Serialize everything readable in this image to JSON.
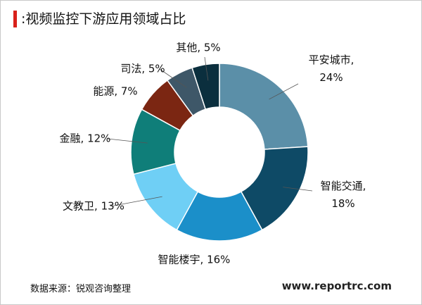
{
  "chart_data": {
    "type": "donut",
    "title": ":视频监控下游应用领域占比",
    "categories": [
      "平安城市",
      "智能交通",
      "智能楼宇",
      "文教卫",
      "金融",
      "能源",
      "司法",
      "其他"
    ],
    "values": [
      24,
      18,
      16,
      13,
      12,
      7,
      5,
      5
    ],
    "value_labels": [
      "平安城市,\n24%",
      "智能交通,\n18%",
      "智能楼宇, 16%",
      "文教卫, 13%",
      "金融, 12%",
      "能源, 7%",
      "司法, 5%",
      "其他, 5%"
    ],
    "colors": [
      "#5b8fa8",
      "#0e4a66",
      "#1b8fc9",
      "#6fcff5",
      "#0f7e79",
      "#7b2612",
      "#3e5768",
      "#0b2f3e"
    ],
    "source": "数据来源：锐观咨询整理",
    "website": "www.reportrc.com"
  }
}
